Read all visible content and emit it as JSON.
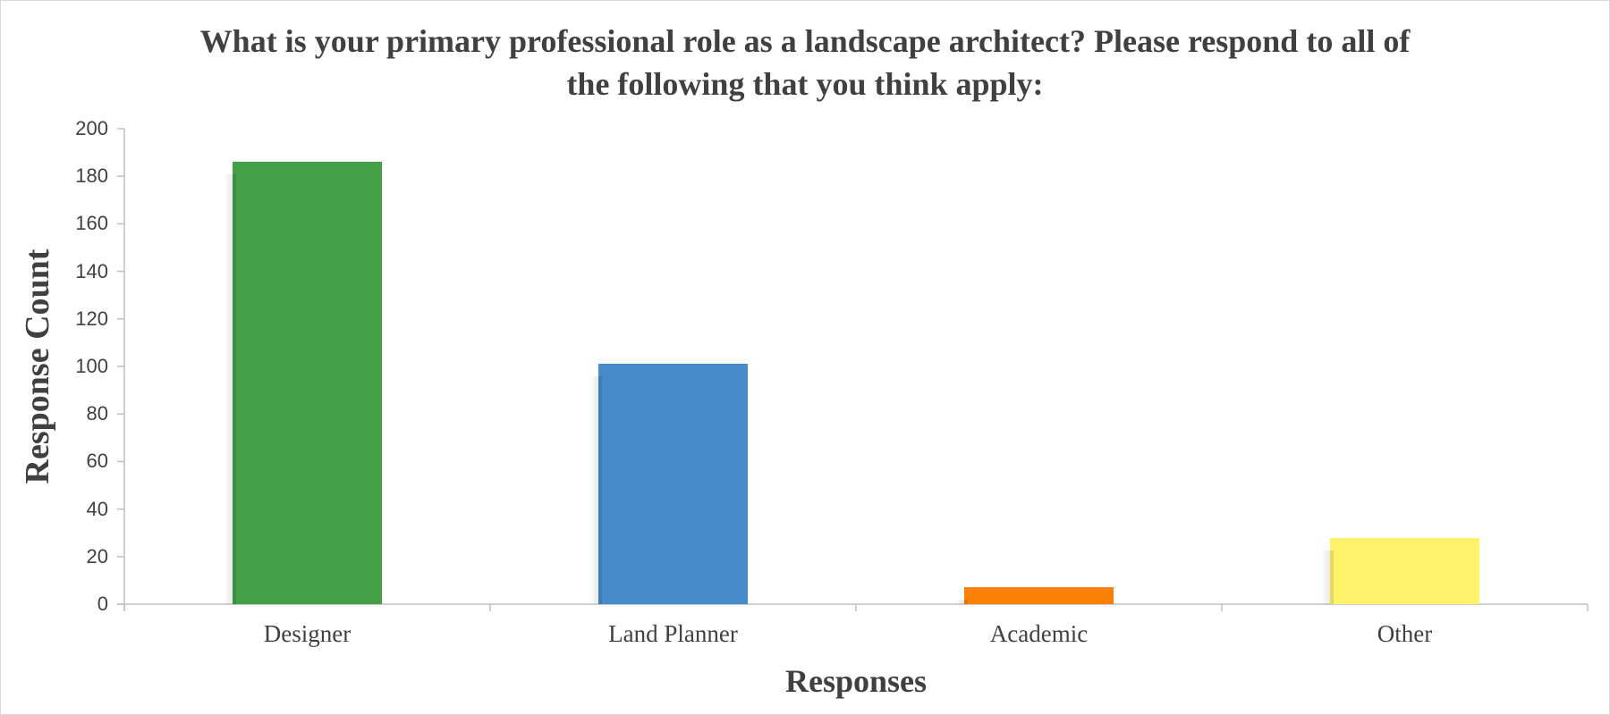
{
  "chart_data": {
    "type": "bar",
    "title": "What is your primary professional role as a landscape architect? Please respond to all of the following that you think apply:",
    "title_lines": [
      "What is your primary professional role as a landscape architect? Please respond to all of",
      "the following that you think apply:"
    ],
    "xlabel": "Responses",
    "ylabel": "Response Count",
    "categories": [
      "Designer",
      "Land Planner",
      "Academic",
      "Other"
    ],
    "values": [
      186,
      101,
      7,
      28
    ],
    "colors": [
      "#43a047",
      "#468bca",
      "#fc7f06",
      "#fef36a"
    ],
    "ylim": [
      0,
      200
    ],
    "yticks": [
      0,
      20,
      40,
      60,
      80,
      100,
      120,
      140,
      160,
      180,
      200
    ],
    "grid": false,
    "legend": "none"
  }
}
